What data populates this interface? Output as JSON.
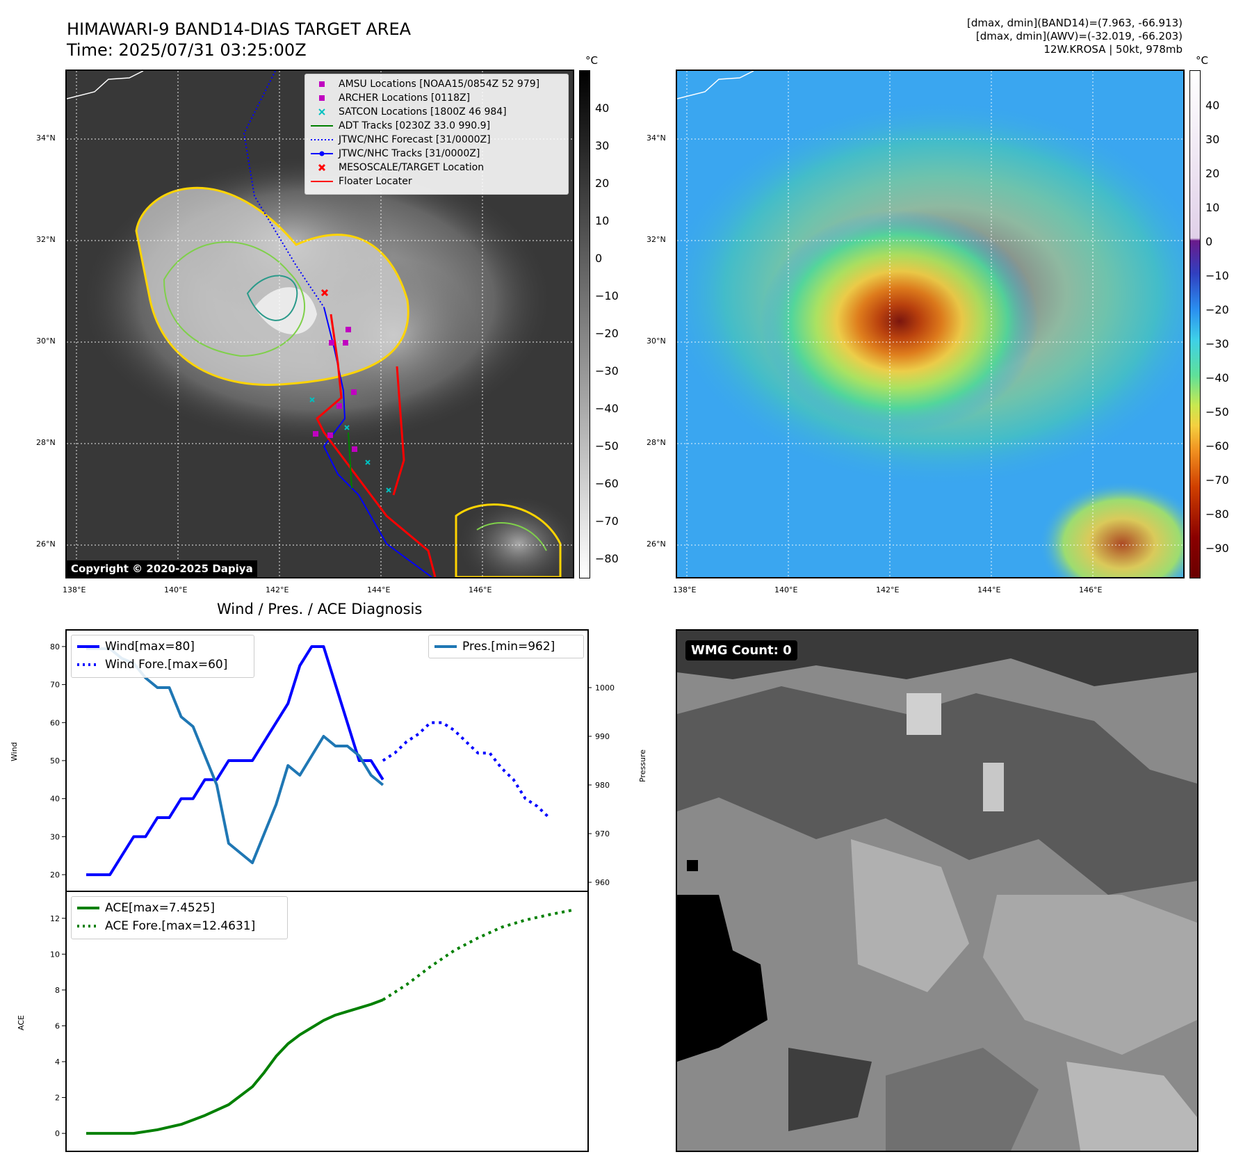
{
  "header": {
    "title_line1": "HIMAWARI-9 BAND14-DIAS TARGET AREA",
    "title_line2": "Time: 2025/07/31 03:25:00Z",
    "info_line1": "[dmax, dmin](BAND14)=(7.963, -66.913)",
    "info_line2": "[dmax, dmin](AWV)=(-32.019, -66.203)",
    "info_line3": "12W.KROSA | 50kt, 978mb"
  },
  "map": {
    "lat_ticks": [
      "34°N",
      "32°N",
      "30°N",
      "28°N",
      "26°N"
    ],
    "lon_ticks": [
      "138°E",
      "140°E",
      "142°E",
      "144°E",
      "146°E"
    ],
    "copyright": "Copyright © 2020-2025 Dapiya",
    "legend": [
      {
        "label": "AMSU Locations [NOAA15/0854Z 52 979]",
        "symbol": "square",
        "color": "#c000c0"
      },
      {
        "label": "ARCHER Locations [0118Z]",
        "symbol": "square",
        "color": "#c000c0"
      },
      {
        "label": "SATCON Locations [1800Z 46 984]",
        "symbol": "x",
        "color": "#00c0c0"
      },
      {
        "label": "ADT Tracks [0230Z 33.0 990.9]",
        "symbol": "line",
        "color": "#008000"
      },
      {
        "label": "JTWC/NHC Forecast [31/0000Z]",
        "symbol": "dotted",
        "color": "#0000ff"
      },
      {
        "label": "JTWC/NHC Tracks [31/0000Z]",
        "symbol": "linedot",
        "color": "#0000ff"
      },
      {
        "label": "MESOSCALE/TARGET Location",
        "symbol": "x",
        "color": "#ff0000"
      },
      {
        "label": "Floater Locater",
        "symbol": "line",
        "color": "#ff0000"
      }
    ],
    "colorbar_left": {
      "unit": "°C",
      "ticks": [
        "40",
        "30",
        "20",
        "10",
        "0",
        "−10",
        "−20",
        "−30",
        "−40",
        "−50",
        "−60",
        "−70",
        "−80"
      ],
      "range": [
        -85,
        49
      ]
    },
    "colorbar_right": {
      "unit": "°C",
      "ticks": [
        "40",
        "30",
        "20",
        "10",
        "0",
        "−10",
        "−20",
        "−30",
        "−40",
        "−50",
        "−60",
        "−70",
        "−80",
        "−90"
      ],
      "range": [
        -100,
        50
      ]
    }
  },
  "diagnosis": {
    "title": "Wind / Pres. / ACE Diagnosis",
    "wind_ylabel": "Wind",
    "pres_ylabel": "Pressure",
    "ace_ylabel": "ACE",
    "legend_wind": "Wind[max=80]",
    "legend_wind_fore": "Wind Fore.[max=60]",
    "legend_pres": "Pres.[min=962]",
    "legend_ace": "ACE[max=7.4525]",
    "legend_ace_fore": "ACE Fore.[max=12.4631]",
    "wmg_count": "WMG Count: 0"
  },
  "chart_data": [
    {
      "type": "line",
      "title": "Wind / Pres. / ACE Diagnosis",
      "ylabel": "Wind",
      "ylim": [
        18,
        82
      ],
      "yticks": [
        "20",
        "30",
        "40",
        "50",
        "60",
        "70",
        "80"
      ],
      "series": [
        {
          "name": "Wind[max=80]",
          "color": "#0000ff",
          "style": "solid",
          "x": [
            0,
            2,
            4,
            6,
            8,
            10,
            12,
            14,
            16,
            18,
            20,
            22,
            24,
            26,
            28,
            30,
            32,
            34,
            36,
            38,
            40,
            42,
            44,
            46,
            48,
            50
          ],
          "values": [
            20,
            20,
            20,
            25,
            30,
            30,
            35,
            35,
            40,
            40,
            45,
            45,
            50,
            50,
            50,
            55,
            60,
            65,
            75,
            80,
            80,
            70,
            60,
            50,
            50,
            45
          ]
        },
        {
          "name": "Wind Fore.[max=60]",
          "color": "#0000ff",
          "style": "dotted",
          "x": [
            50,
            52,
            54,
            56,
            58,
            60,
            62,
            64,
            66,
            68,
            70,
            72,
            74,
            76,
            78
          ],
          "values": [
            50,
            52,
            55,
            57,
            60,
            60,
            58,
            55,
            52,
            52,
            48,
            45,
            40,
            38,
            35
          ]
        },
        {
          "name": "Pres.[min=962]",
          "color": "#1f77b4",
          "style": "solid",
          "axis": "right",
          "ylim": [
            960,
            1010
          ],
          "yticks": [
            "960",
            "970",
            "980",
            "990",
            "1000"
          ],
          "x": [
            0,
            4,
            6,
            8,
            10,
            12,
            14,
            16,
            18,
            20,
            22,
            24,
            26,
            28,
            30,
            32,
            34,
            36,
            38,
            40,
            42,
            44,
            46,
            48,
            50
          ],
          "values": [
            1008,
            1008,
            1006,
            1005,
            1002,
            1000,
            1000,
            994,
            992,
            986,
            980,
            968,
            966,
            964,
            970,
            976,
            984,
            982,
            986,
            990,
            988,
            988,
            986,
            982,
            980
          ]
        }
      ]
    },
    {
      "type": "line",
      "ylabel": "ACE",
      "ylim": [
        -0.5,
        13
      ],
      "yticks": [
        "0",
        "2",
        "4",
        "6",
        "8",
        "10",
        "12"
      ],
      "series": [
        {
          "name": "ACE[max=7.4525]",
          "color": "#008000",
          "style": "solid",
          "x": [
            0,
            6,
            8,
            12,
            16,
            20,
            24,
            28,
            30,
            32,
            34,
            36,
            38,
            40,
            42,
            44,
            46,
            48,
            50
          ],
          "values": [
            0,
            0,
            0,
            0.2,
            0.5,
            1.0,
            1.6,
            2.6,
            3.4,
            4.3,
            5.0,
            5.5,
            5.9,
            6.3,
            6.6,
            6.8,
            7.0,
            7.2,
            7.45
          ]
        },
        {
          "name": "ACE Fore.[max=12.4631]",
          "color": "#008000",
          "style": "dotted",
          "x": [
            50,
            54,
            58,
            62,
            66,
            70,
            74,
            78,
            82
          ],
          "values": [
            7.45,
            8.3,
            9.3,
            10.2,
            10.9,
            11.5,
            11.9,
            12.2,
            12.46
          ]
        }
      ]
    }
  ]
}
